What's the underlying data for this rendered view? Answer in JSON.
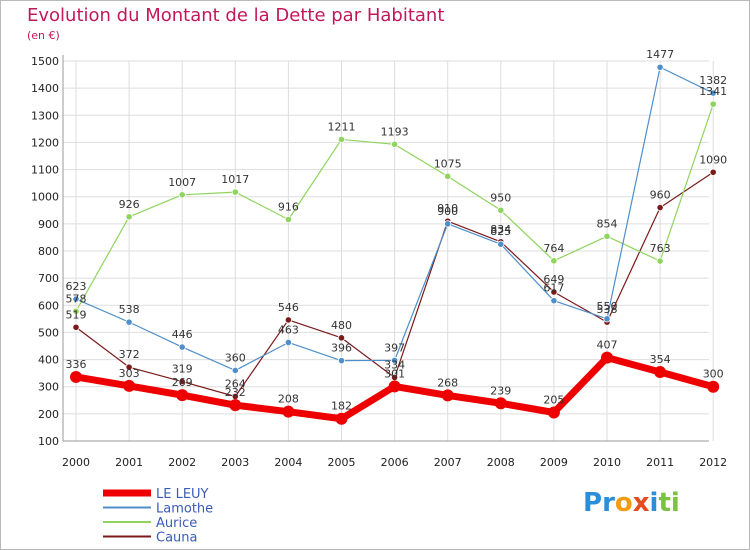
{
  "chart_data": {
    "type": "line",
    "title": "Evolution du Montant de la Dette par Habitant",
    "unit_label": "(en €)",
    "x": [
      "2000",
      "2001",
      "2002",
      "2003",
      "2004",
      "2005",
      "2006",
      "2007",
      "2008",
      "2009",
      "2010",
      "2011",
      "2012"
    ],
    "ylim": [
      100,
      1500
    ],
    "yticks": [
      100,
      200,
      300,
      400,
      500,
      600,
      700,
      800,
      900,
      1000,
      1100,
      1200,
      1300,
      1400,
      1500
    ],
    "grid": true,
    "legend_position": "bottom-left",
    "series": [
      {
        "name": "LE LEUY",
        "color": "#ee0000",
        "values": [
          336,
          303,
          269,
          232,
          208,
          182,
          301,
          268,
          239,
          205,
          407,
          354,
          300
        ]
      },
      {
        "name": "Lamothe",
        "color": "#4f8fc9",
        "values": [
          623,
          538,
          446,
          360,
          463,
          396,
          397,
          900,
          825,
          617,
          550,
          1477,
          1382
        ]
      },
      {
        "name": "Aurice",
        "color": "#8fd45c",
        "values": [
          578,
          926,
          1007,
          1017,
          916,
          1211,
          1193,
          1075,
          950,
          764,
          854,
          763,
          1341
        ]
      },
      {
        "name": "Cauna",
        "color": "#7a1a1a",
        "values": [
          519,
          372,
          319,
          264,
          546,
          480,
          334,
          910,
          834,
          649,
          538,
          960,
          1090
        ]
      }
    ]
  },
  "brand": {
    "text": "Proxiti",
    "letters": [
      {
        "ch": "P",
        "color": "#2a8fd8"
      },
      {
        "ch": "r",
        "color": "#2a8fd8"
      },
      {
        "ch": "o",
        "color": "#f39c12"
      },
      {
        "ch": "x",
        "color": "#e8491d"
      },
      {
        "ch": "i",
        "color": "#2a8fd8"
      },
      {
        "ch": "t",
        "color": "#7cc242"
      },
      {
        "ch": "i",
        "color": "#7cc242"
      }
    ]
  }
}
